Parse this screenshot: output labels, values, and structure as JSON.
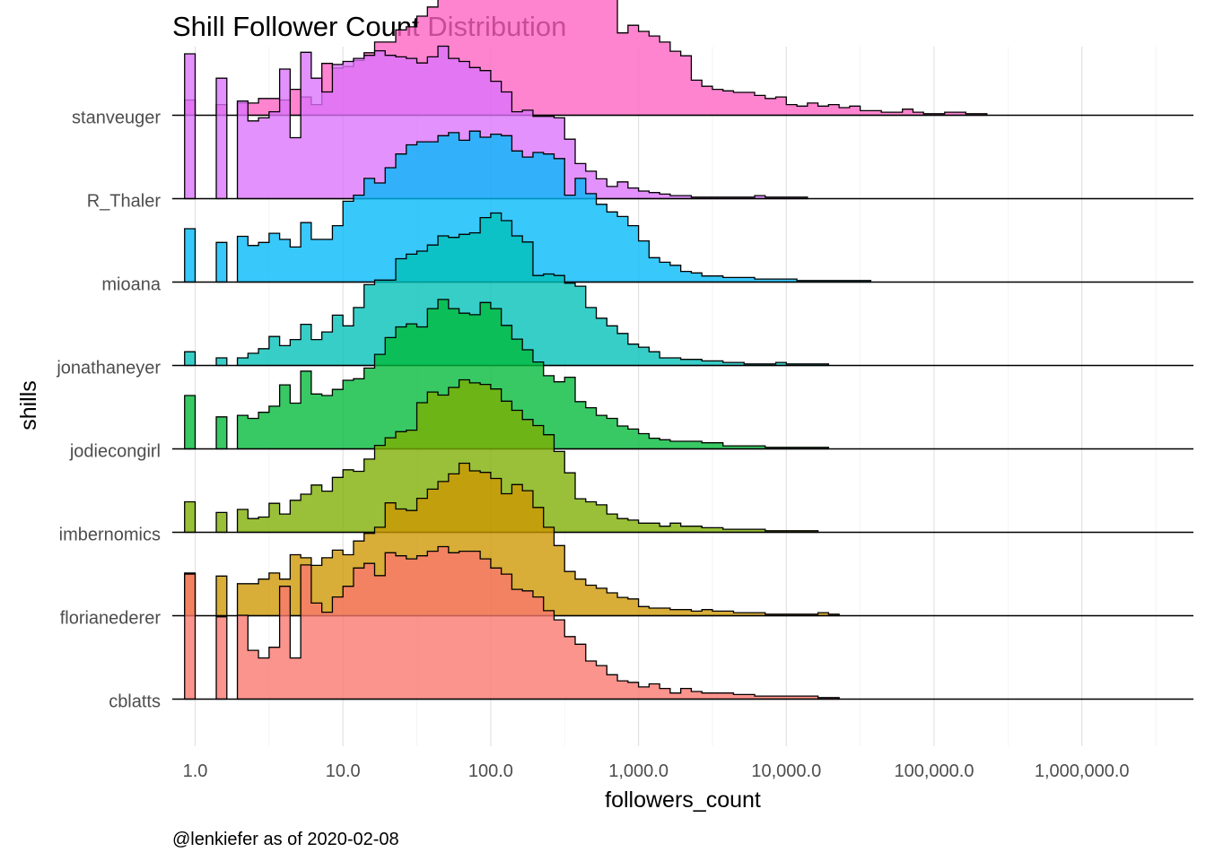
{
  "chart_data": {
    "type": "ridgeline-histogram",
    "title": "Shill Follower Count Distribution",
    "xlabel": "followers_count",
    "ylabel": "shills",
    "caption": "@lenkiefer as of 2020-02-08",
    "x_scale": "log10",
    "x_ticks": [
      1,
      10,
      100,
      1000,
      10000,
      100000,
      1000000
    ],
    "x_tick_labels": [
      "1.0",
      "10.0",
      "100.0",
      "1,000.0",
      "10,000.0",
      "100,000.0",
      "1,000,000.0"
    ],
    "xlim": [
      0.55,
      4500000
    ],
    "bins_per_decade": 14,
    "first_bin_start": 0.8483,
    "value_unit": "relative density (peak bin = 1)",
    "grid": true,
    "legend": "none",
    "series": [
      {
        "name": "stanveuger",
        "color": "#FF61C3",
        "values": [
          0.1,
          0,
          0,
          0.07,
          0,
          0.08,
          0.08,
          0.11,
          0.11,
          0.1,
          0.17,
          0.12,
          0.07,
          0.34,
          0.31,
          0.32,
          0.36,
          0.41,
          0.48,
          0.48,
          0.56,
          0.58,
          0.65,
          0.71,
          0.88,
          0.84,
          0.93,
          0.92,
          0.98,
          0.98,
          1.0,
          0.98,
          0.85,
          0.88,
          0.97,
          0.98,
          0.98,
          0.96,
          0.83,
          0.94,
          0.84,
          0.54,
          0.59,
          0.55,
          0.52,
          0.48,
          0.42,
          0.39,
          0.23,
          0.19,
          0.17,
          0.16,
          0.15,
          0.15,
          0.13,
          0.11,
          0.12,
          0.07,
          0.06,
          0.08,
          0.06,
          0.07,
          0.05,
          0.06,
          0.03,
          0.03,
          0.02,
          0.02,
          0.04,
          0.02,
          0.01,
          0.01,
          0.02,
          0.02,
          0.01,
          0.01
        ]
      },
      {
        "name": "R_Thaler",
        "color": "#DB72FB",
        "values": [
          0.95,
          0,
          0,
          0.79,
          0,
          0.64,
          0.51,
          0.53,
          0.57,
          0.85,
          0.4,
          0.96,
          0.79,
          0.7,
          0.88,
          0.9,
          0.92,
          0.94,
          0.97,
          0.94,
          0.93,
          0.92,
          0.89,
          0.93,
          1.0,
          0.92,
          0.9,
          0.86,
          0.84,
          0.77,
          0.7,
          0.57,
          0.58,
          0.54,
          0.54,
          0.53,
          0.39,
          0.23,
          0.18,
          0.13,
          0.08,
          0.11,
          0.07,
          0.05,
          0.04,
          0.03,
          0.02,
          0.02,
          0.01,
          0.01,
          0.01,
          0.01,
          0.01,
          0.01,
          0.02,
          0.01,
          0.01,
          0.01,
          0.01
        ]
      },
      {
        "name": "mioana",
        "color": "#00B9F9",
        "values": [
          0.35,
          0,
          0,
          0.26,
          0,
          0.3,
          0.24,
          0.26,
          0.32,
          0.28,
          0.23,
          0.39,
          0.28,
          0.28,
          0.37,
          0.53,
          0.57,
          0.68,
          0.65,
          0.75,
          0.84,
          0.9,
          0.92,
          0.92,
          0.96,
          0.98,
          0.93,
          0.99,
          0.95,
          0.97,
          0.96,
          0.86,
          0.82,
          0.85,
          0.84,
          0.81,
          0.57,
          0.68,
          0.58,
          0.51,
          0.46,
          0.43,
          0.37,
          0.27,
          0.16,
          0.13,
          0.11,
          0.07,
          0.06,
          0.04,
          0.04,
          0.03,
          0.03,
          0.03,
          0.02,
          0.02,
          0.02,
          0.02,
          0.01,
          0.01,
          0.01,
          0.01,
          0.01,
          0.01,
          0.01
        ]
      },
      {
        "name": "jonathaneyer",
        "color": "#00C0B8",
        "values": [
          0.09,
          0,
          0,
          0.05,
          0,
          0.05,
          0.08,
          0.11,
          0.19,
          0.13,
          0.17,
          0.27,
          0.17,
          0.22,
          0.33,
          0.26,
          0.38,
          0.53,
          0.56,
          0.56,
          0.7,
          0.73,
          0.75,
          0.79,
          0.85,
          0.84,
          0.86,
          0.87,
          0.97,
          1.0,
          0.95,
          0.85,
          0.81,
          0.59,
          0.6,
          0.59,
          0.54,
          0.52,
          0.38,
          0.31,
          0.26,
          0.21,
          0.14,
          0.12,
          0.09,
          0.05,
          0.05,
          0.04,
          0.04,
          0.03,
          0.03,
          0.02,
          0.02,
          0.01,
          0.01,
          0.01,
          0.02,
          0.01,
          0.01,
          0.01,
          0.01
        ]
      },
      {
        "name": "jodiecongirl",
        "color": "#00BA38",
        "values": [
          0.35,
          0,
          0,
          0.21,
          0,
          0.22,
          0.2,
          0.24,
          0.28,
          0.42,
          0.3,
          0.51,
          0.36,
          0.35,
          0.39,
          0.45,
          0.46,
          0.53,
          0.62,
          0.73,
          0.8,
          0.82,
          0.8,
          0.92,
          0.98,
          0.92,
          0.89,
          0.88,
          0.96,
          0.92,
          0.81,
          0.72,
          0.65,
          0.57,
          0.48,
          0.44,
          0.47,
          0.31,
          0.27,
          0.22,
          0.2,
          0.15,
          0.13,
          0.1,
          0.07,
          0.06,
          0.05,
          0.05,
          0.05,
          0.04,
          0.04,
          0.02,
          0.02,
          0.02,
          0.02,
          0.01,
          0.01,
          0.01,
          0.01,
          0.01,
          0.01
        ]
      },
      {
        "name": "imbernomics",
        "color": "#7CAE00",
        "values": [
          0.2,
          0,
          0,
          0.13,
          0,
          0.15,
          0.09,
          0.1,
          0.19,
          0.12,
          0.21,
          0.25,
          0.31,
          0.27,
          0.36,
          0.41,
          0.4,
          0.48,
          0.57,
          0.62,
          0.66,
          0.67,
          0.85,
          0.92,
          0.9,
          0.95,
          1.0,
          0.98,
          0.97,
          0.94,
          0.86,
          0.8,
          0.74,
          0.7,
          0.64,
          0.53,
          0.39,
          0.22,
          0.2,
          0.18,
          0.12,
          0.09,
          0.08,
          0.06,
          0.06,
          0.04,
          0.06,
          0.04,
          0.04,
          0.03,
          0.03,
          0.02,
          0.02,
          0.02,
          0.02,
          0.01,
          0.01,
          0.01,
          0.01,
          0.01
        ]
      },
      {
        "name": "florianederer",
        "color": "#CD9600",
        "values": [
          0.28,
          0,
          0,
          0.26,
          0,
          0.21,
          0.21,
          0.24,
          0.28,
          0.24,
          0.4,
          0.38,
          0.33,
          0.38,
          0.43,
          0.4,
          0.49,
          0.54,
          0.58,
          0.74,
          0.7,
          0.69,
          0.77,
          0.83,
          0.88,
          0.93,
          1.0,
          0.95,
          0.94,
          0.9,
          0.8,
          0.86,
          0.82,
          0.71,
          0.58,
          0.46,
          0.29,
          0.24,
          0.2,
          0.18,
          0.15,
          0.12,
          0.11,
          0.06,
          0.05,
          0.05,
          0.04,
          0.04,
          0.03,
          0.04,
          0.03,
          0.03,
          0.02,
          0.02,
          0.02,
          0.01,
          0.01,
          0.01,
          0.01,
          0.01,
          0.02,
          0.01
        ]
      },
      {
        "name": "cblatts",
        "color": "#F8766D",
        "values": [
          0.82,
          0,
          0,
          0.54,
          0,
          0.55,
          0.32,
          0.27,
          0.34,
          0.74,
          0.27,
          0.88,
          0.63,
          0.57,
          0.67,
          0.74,
          0.86,
          0.89,
          0.81,
          0.96,
          0.94,
          0.92,
          0.94,
          0.97,
          1.0,
          0.96,
          0.97,
          0.97,
          0.92,
          0.86,
          0.82,
          0.72,
          0.71,
          0.67,
          0.58,
          0.52,
          0.41,
          0.36,
          0.25,
          0.22,
          0.16,
          0.12,
          0.11,
          0.08,
          0.1,
          0.07,
          0.04,
          0.07,
          0.05,
          0.04,
          0.04,
          0.04,
          0.03,
          0.03,
          0.02,
          0.02,
          0.02,
          0.02,
          0.02,
          0.02,
          0.01,
          0.01
        ]
      }
    ]
  }
}
